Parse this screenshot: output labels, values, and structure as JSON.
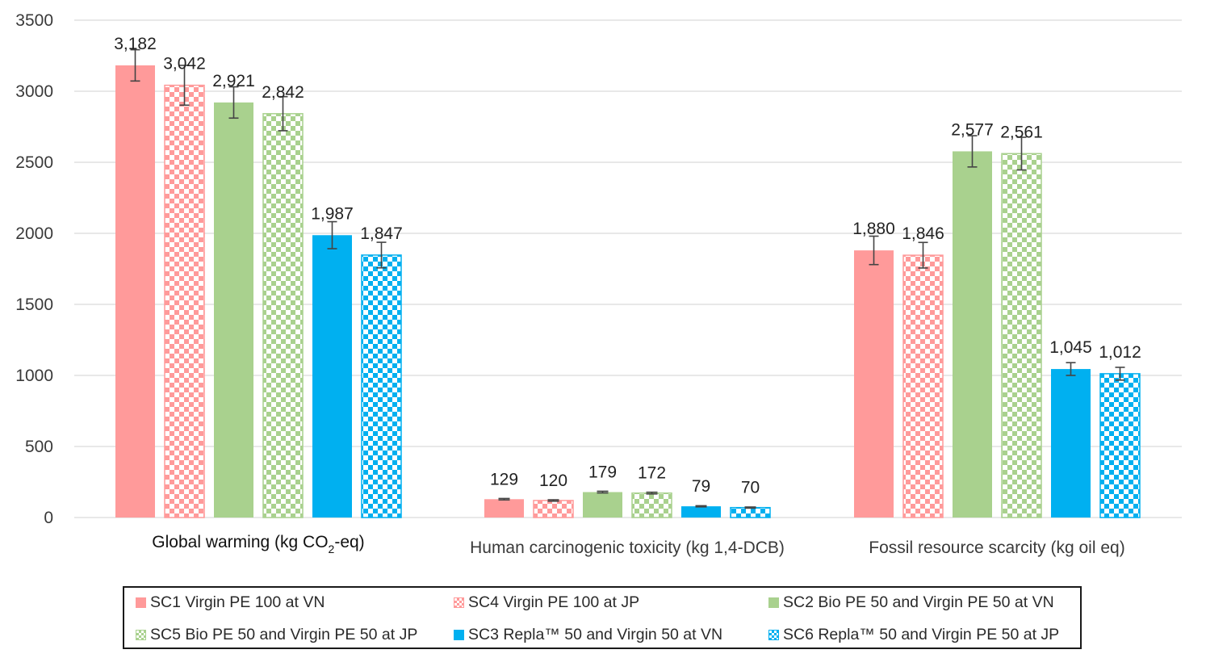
{
  "chart_data": {
    "type": "bar",
    "categories": [
      {
        "main": "Global warming (kg CO",
        "sub": "2",
        "rest": "-eq)"
      },
      {
        "main": "Human carcinogenic toxicity (kg 1,4-DCB)",
        "sub": "",
        "rest": ""
      },
      {
        "main": "Fossil resource scarcity (kg oil eq)",
        "sub": "",
        "rest": ""
      }
    ],
    "ylim": [
      0,
      3500
    ],
    "yticks": [
      "0",
      "500",
      "1000",
      "1500",
      "2000",
      "2500",
      "3000",
      "3500"
    ],
    "grid": true,
    "legend_position": "bottom",
    "series": [
      {
        "name": "SC1 Virgin PE 100 at VN",
        "color": "#ff9a9a",
        "pattern": "solid",
        "values": [
          3182,
          129,
          1880
        ],
        "labels": [
          "3,182",
          "129",
          "1,880"
        ],
        "errors": [
          110,
          5,
          100
        ]
      },
      {
        "name": "SC4 Virgin PE 100 at JP",
        "color": "#ff9a9a",
        "pattern": "checker",
        "values": [
          3042,
          120,
          1846
        ],
        "labels": [
          "3,042",
          "120",
          "1,846"
        ],
        "errors": [
          140,
          5,
          90
        ]
      },
      {
        "name": "SC2 Bio PE 50 and Virgin PE 50 at VN",
        "color": "#a9d18e",
        "pattern": "solid",
        "values": [
          2921,
          179,
          2577
        ],
        "labels": [
          "2,921",
          "179",
          "2,577"
        ],
        "errors": [
          110,
          6,
          110
        ]
      },
      {
        "name": "SC5 Bio PE 50 and Virgin PE 50 at JP",
        "color": "#a9d18e",
        "pattern": "checker",
        "values": [
          2842,
          172,
          2561
        ],
        "labels": [
          "2,842",
          "172",
          "2,561"
        ],
        "errors": [
          120,
          6,
          115
        ]
      },
      {
        "name": "SC3 Repla™ 50 and Virgin 50 at VN",
        "color": "#00b0f0",
        "pattern": "solid",
        "values": [
          1987,
          79,
          1045
        ],
        "labels": [
          "1,987",
          "79",
          "1,045"
        ],
        "errors": [
          95,
          4,
          45
        ]
      },
      {
        "name": "SC6 Repla™ 50 and Virgin PE 50 at JP",
        "color": "#00b0f0",
        "pattern": "checker",
        "values": [
          1847,
          70,
          1012
        ],
        "labels": [
          "1,847",
          "70",
          "1,012"
        ],
        "errors": [
          90,
          4,
          45
        ]
      }
    ]
  }
}
